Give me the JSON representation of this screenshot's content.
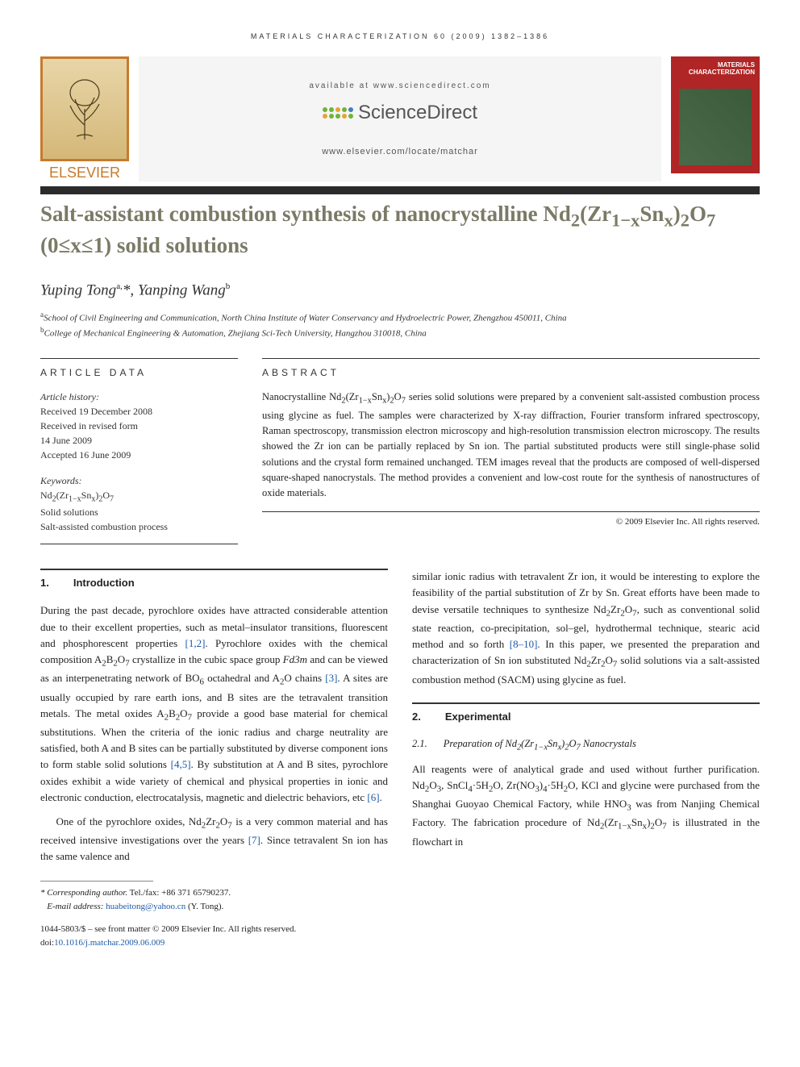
{
  "running_head": "MATERIALS CHARACTERIZATION 60 (2009) 1382–1386",
  "header": {
    "publisher_logo_label": "ELSEVIER",
    "available_text": "available at www.sciencedirect.com",
    "scidirect_label": "ScienceDirect",
    "journal_url": "www.elsevier.com/locate/matchar",
    "journal_cover_title": "MATERIALS CHARACTERIZATION"
  },
  "colors": {
    "title_bar": "#2b2b2b",
    "title_text": "#7a7a66",
    "elsevier_orange": "#c77a2c",
    "cover_red": "#b02525",
    "link": "#1a5aa8",
    "sd_green": "#6fb536",
    "sd_orange": "#e8a23a",
    "sd_blue": "#4a7fb5"
  },
  "title_html": "Salt-assistant combustion synthesis of nanocrystalline Nd<sub>2</sub>(Zr<sub>1−x</sub>Sn<sub>x</sub>)<sub>2</sub>O<sub>7</sub> (0≤x≤1) solid solutions",
  "authors_html": "Yuping Tong<sup>a,</sup>*, Yanping Wang<sup>b</sup>",
  "affiliations": [
    {
      "sup": "a",
      "text": "School of Civil Engineering and Communication, North China Institute of Water Conservancy and Hydroelectric Power, Zhengzhou 450011, China"
    },
    {
      "sup": "b",
      "text": "College of Mechanical Engineering & Automation, Zhejiang Sci-Tech University, Hangzhou 310018, China"
    }
  ],
  "article_data": {
    "heading": "ARTICLE DATA",
    "history_label": "Article history:",
    "history": [
      "Received 19 December 2008",
      "Received in revised form",
      "14 June 2009",
      "Accepted 16 June 2009"
    ],
    "keywords_label": "Keywords:",
    "keywords_html": [
      "Nd<sub>2</sub>(Zr<sub>1−x</sub>Sn<sub>x</sub>)<sub>2</sub>O<sub>7</sub>",
      "Solid solutions",
      "Salt-assisted combustion process"
    ]
  },
  "abstract": {
    "heading": "ABSTRACT",
    "body_html": "Nanocrystalline Nd<sub>2</sub>(Zr<sub>1−x</sub>Sn<sub>x</sub>)<sub>2</sub>O<sub>7</sub> series solid solutions were prepared by a convenient salt-assisted combustion process using glycine as fuel. The samples were characterized by X-ray diffraction, Fourier transform infrared spectroscopy, Raman spectroscopy, transmission electron microscopy and high-resolution transmission electron microscopy. The results showed the Zr ion can be partially replaced by Sn ion. The partial substituted products were still single-phase solid solutions and the crystal form remained unchanged. TEM images reveal that the products are composed of well-dispersed square-shaped nanocrystals. The method provides a convenient and low-cost route for the synthesis of nanostructures of oxide materials.",
    "copyright": "© 2009 Elsevier Inc. All rights reserved."
  },
  "section1": {
    "num": "1.",
    "title": "Introduction",
    "p1_html": "During the past decade, pyrochlore oxides have attracted considerable attention due to their excellent properties, such as metal–insulator transitions, fluorescent and phosphorescent properties <span class=\"link\">[1,2]</span>. Pyrochlore oxides with the chemical composition A<sub>2</sub>B<sub>2</sub>O<sub>7</sub> crystallize in the cubic space group <i>Fd3m</i> and can be viewed as an interpenetrating network of BO<sub>6</sub> octahedral and A<sub>2</sub>O chains <span class=\"link\">[3]</span>. A sites are usually occupied by rare earth ions, and B sites are the tetravalent transition metals. The metal oxides A<sub>2</sub>B<sub>2</sub>O<sub>7</sub> provide a good base material for chemical substitutions. When the criteria of the ionic radius and charge neutrality are satisfied, both A and B sites can be partially substituted by diverse component ions to form stable solid solutions <span class=\"link\">[4,5]</span>. By substitution at A and B sites, pyrochlore oxides exhibit a wide variety of chemical and physical properties in ionic and electronic conduction, electrocatalysis, magnetic and dielectric behaviors, etc <span class=\"link\">[6]</span>.",
    "p2_html": "One of the pyrochlore oxides, Nd<sub>2</sub>Zr<sub>2</sub>O<sub>7</sub> is a very common material and has received intensive investigations over the years <span class=\"link\">[7]</span>. Since tetravalent Sn ion has the same valence and",
    "p3_html": "similar ionic radius with tetravalent Zr ion, it would be interesting to explore the feasibility of the partial substitution of Zr by Sn. Great efforts have been made to devise versatile techniques to synthesize Nd<sub>2</sub>Zr<sub>2</sub>O<sub>7</sub>, such as conventional solid state reaction, co-precipitation, sol–gel, hydrothermal technique, stearic acid method and so forth <span class=\"link\">[8–10]</span>. In this paper, we presented the preparation and characterization of Sn ion substituted Nd<sub>2</sub>Zr<sub>2</sub>O<sub>7</sub> solid solutions via a salt-assisted combustion method (SACM) using glycine as fuel."
  },
  "section2": {
    "num": "2.",
    "title": "Experimental",
    "sub_num": "2.1.",
    "sub_title_html": "Preparation of Nd<sub>2</sub>(Zr<sub>1−x</sub>Sn<sub>x</sub>)<sub>2</sub>O<sub>7</sub> Nanocrystals",
    "p1_html": "All reagents were of analytical grade and used without further purification. Nd<sub>2</sub>O<sub>3</sub>, SnCl<sub>4</sub>·5H<sub>2</sub>O, Zr(NO<sub>3</sub>)<sub>4</sub>·5H<sub>2</sub>O, KCl and glycine were purchased from the Shanghai Guoyao Chemical Factory, while HNO<sub>3</sub> was from Nanjing Chemical Factory. The fabrication procedure of Nd<sub>2</sub>(Zr<sub>1−x</sub>Sn<sub>x</sub>)<sub>2</sub>O<sub>7</sub> is illustrated in the flowchart in"
  },
  "footnote": {
    "corr_label": "* Corresponding author.",
    "corr_text": " Tel./fax: +86 371 65790237.",
    "email_label": "E-mail address:",
    "email": "huabeitong@yahoo.cn",
    "email_who": " (Y. Tong)."
  },
  "bottom": {
    "line1": "1044-5803/$ – see front matter © 2009 Elsevier Inc. All rights reserved.",
    "doi_label": "doi:",
    "doi": "10.1016/j.matchar.2009.06.009"
  }
}
